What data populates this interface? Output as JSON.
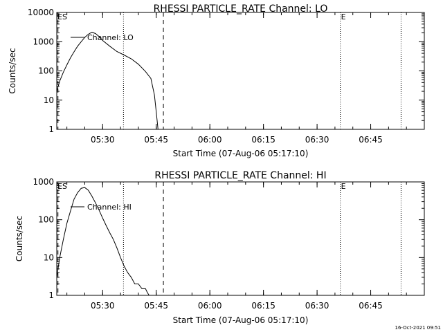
{
  "footer": {
    "timestamp": "16-Oct-2021 09:51"
  },
  "chart_data": [
    {
      "type": "line",
      "title": "RHESSI PARTICLE_RATE Channel: LO",
      "xlabel": "Start Time (07-Aug-06 05:17:10)",
      "ylabel": "Counts/sec",
      "yscale": "log",
      "ylim": [
        1,
        10000
      ],
      "xlim": [
        "05:17:10",
        "07:00:00"
      ],
      "x_ticks": [
        "05:30",
        "05:45",
        "06:00",
        "06:15",
        "06:30",
        "06:45"
      ],
      "y_ticks": [
        "1",
        "10",
        "100",
        "1000",
        "10000"
      ],
      "markers": [
        {
          "label": "ES",
          "time": "05:17:10"
        },
        {
          "label": "E",
          "time": "06:36:30"
        }
      ],
      "dotted_lines": [
        "05:35:50",
        "06:36:30",
        "06:53:30"
      ],
      "dashed_lines": [
        "05:17:30",
        "05:47:00"
      ],
      "series": [
        {
          "name": "Channel: LO",
          "x": [
            "05:17:10",
            "05:18:00",
            "05:19:00",
            "05:20:00",
            "05:21:00",
            "05:22:00",
            "05:23:00",
            "05:24:00",
            "05:25:00",
            "05:26:00",
            "05:27:00",
            "05:28:00",
            "05:29:00",
            "05:30:00",
            "05:32:00",
            "05:34:00",
            "05:36:00",
            "05:38:00",
            "05:40:00",
            "05:42:00",
            "05:43:30",
            "05:44:30",
            "05:45:00",
            "05:45:30"
          ],
          "y": [
            20,
            45,
            90,
            160,
            280,
            450,
            700,
            1000,
            1400,
            1800,
            2100,
            1900,
            1500,
            1100,
            700,
            460,
            350,
            260,
            170,
            95,
            55,
            15,
            4,
            1
          ]
        }
      ]
    },
    {
      "type": "line",
      "title": "RHESSI PARTICLE_RATE Channel: HI",
      "xlabel": "Start Time (07-Aug-06 05:17:10)",
      "ylabel": "Counts/sec",
      "yscale": "log",
      "ylim": [
        1,
        1000
      ],
      "xlim": [
        "05:17:10",
        "07:00:00"
      ],
      "x_ticks": [
        "05:30",
        "05:45",
        "06:00",
        "06:15",
        "06:30",
        "06:45"
      ],
      "y_ticks": [
        "1",
        "10",
        "100",
        "1000"
      ],
      "markers": [
        {
          "label": "ES",
          "time": "05:17:10"
        },
        {
          "label": "E",
          "time": "06:36:30"
        }
      ],
      "dotted_lines": [
        "05:35:50",
        "06:36:30",
        "06:53:30"
      ],
      "dashed_lines": [
        "05:17:30",
        "05:47:00"
      ],
      "series": [
        {
          "name": "Channel: HI",
          "x": [
            "05:17:10",
            "05:18:00",
            "05:19:00",
            "05:20:00",
            "05:21:00",
            "05:22:00",
            "05:23:00",
            "05:24:00",
            "05:25:00",
            "05:26:00",
            "05:27:00",
            "05:28:00",
            "05:29:00",
            "05:30:00",
            "05:31:00",
            "05:32:00",
            "05:33:00",
            "05:34:00",
            "05:35:00",
            "05:36:00",
            "05:37:00",
            "05:38:00",
            "05:39:00",
            "05:40:00",
            "05:41:00",
            "05:42:00",
            "05:42:30",
            "05:43:00"
          ],
          "y": [
            3,
            10,
            30,
            80,
            170,
            350,
            520,
            680,
            710,
            600,
            420,
            280,
            180,
            110,
            70,
            45,
            30,
            18,
            10,
            6,
            4,
            3,
            2,
            2,
            1.5,
            1.5,
            1.2,
            1
          ]
        }
      ]
    }
  ]
}
